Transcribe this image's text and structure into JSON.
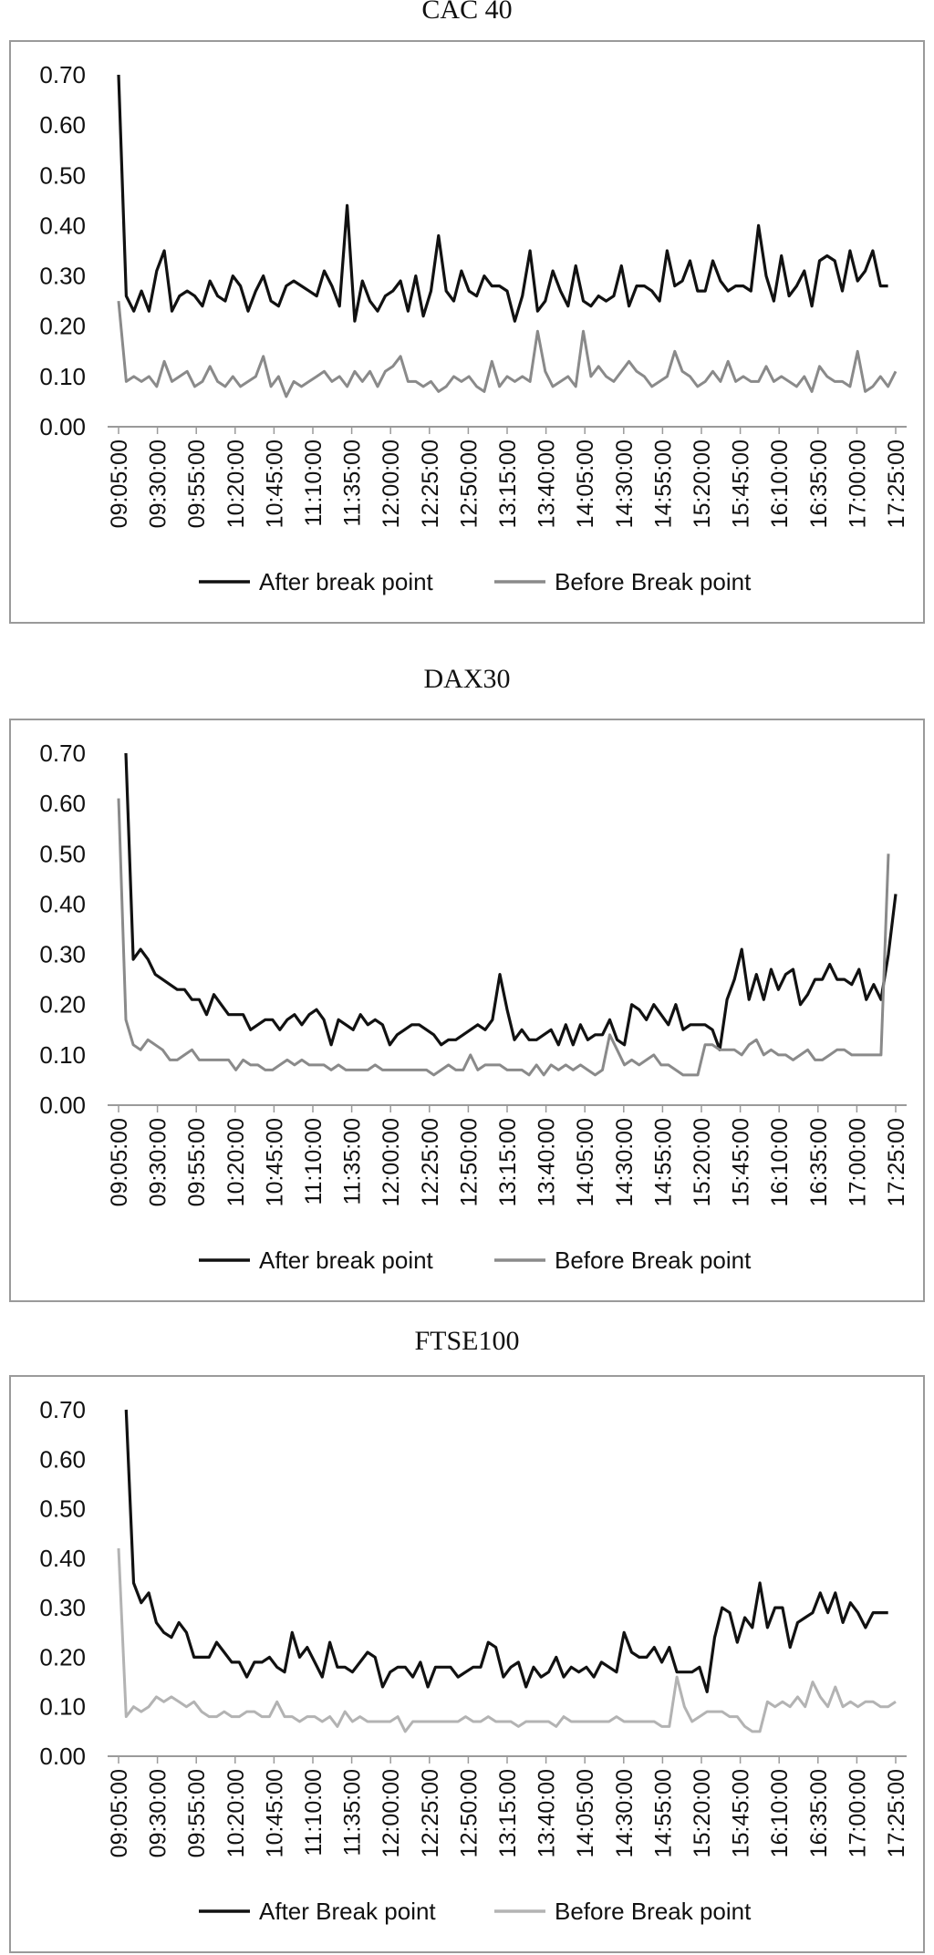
{
  "chart_data": [
    {
      "type": "line",
      "title": "CAC 40",
      "xlabel": "",
      "ylabel": "",
      "ylim": [
        0,
        0.7
      ],
      "yticks": [
        "0.00",
        "0.10",
        "0.20",
        "0.30",
        "0.40",
        "0.50",
        "0.60",
        "0.70"
      ],
      "x_tick_labels": [
        "09:05:00",
        "09:30:00",
        "09:55:00",
        "10:20:00",
        "10:45:00",
        "11:10:00",
        "11:35:00",
        "12:00:00",
        "12:25:00",
        "12:50:00",
        "13:15:00",
        "13:40:00",
        "14:05:00",
        "14:30:00",
        "14:55:00",
        "15:20:00",
        "15:45:00",
        "16:10:00",
        "16:35:00",
        "17:00:00",
        "17:25:00"
      ],
      "grid": false,
      "legend_position": "bottom",
      "series": [
        {
          "name": "After break point",
          "color": "#111111",
          "values": [
            0.7,
            0.26,
            0.23,
            0.27,
            0.23,
            0.31,
            0.35,
            0.23,
            0.26,
            0.27,
            0.26,
            0.24,
            0.29,
            0.26,
            0.25,
            0.3,
            0.28,
            0.23,
            0.27,
            0.3,
            0.25,
            0.24,
            0.28,
            0.29,
            0.28,
            0.27,
            0.26,
            0.31,
            0.28,
            0.24,
            0.44,
            0.21,
            0.29,
            0.25,
            0.23,
            0.26,
            0.27,
            0.29,
            0.23,
            0.3,
            0.22,
            0.27,
            0.38,
            0.27,
            0.25,
            0.31,
            0.27,
            0.26,
            0.3,
            0.28,
            0.28,
            0.27,
            0.21,
            0.26,
            0.35,
            0.23,
            0.25,
            0.31,
            0.27,
            0.24,
            0.32,
            0.25,
            0.24,
            0.26,
            0.25,
            0.26,
            0.32,
            0.24,
            0.28,
            0.28,
            0.27,
            0.25,
            0.35,
            0.28,
            0.29,
            0.33,
            0.27,
            0.27,
            0.33,
            0.29,
            0.27,
            0.28,
            0.28,
            0.27,
            0.4,
            0.3,
            0.25,
            0.34,
            0.26,
            0.28,
            0.31,
            0.24,
            0.33,
            0.34,
            0.33,
            0.27,
            0.35,
            0.29,
            0.31,
            0.35,
            0.28,
            0.28
          ]
        },
        {
          "name": "Before Break point",
          "color": "#8a8a8a",
          "values": [
            0.25,
            0.09,
            0.1,
            0.09,
            0.1,
            0.08,
            0.13,
            0.09,
            0.1,
            0.11,
            0.08,
            0.09,
            0.12,
            0.09,
            0.08,
            0.1,
            0.08,
            0.09,
            0.1,
            0.14,
            0.08,
            0.1,
            0.06,
            0.09,
            0.08,
            0.09,
            0.1,
            0.11,
            0.09,
            0.1,
            0.08,
            0.11,
            0.09,
            0.11,
            0.08,
            0.11,
            0.12,
            0.14,
            0.09,
            0.09,
            0.08,
            0.09,
            0.07,
            0.08,
            0.1,
            0.09,
            0.1,
            0.08,
            0.07,
            0.13,
            0.08,
            0.1,
            0.09,
            0.1,
            0.09,
            0.19,
            0.11,
            0.08,
            0.09,
            0.1,
            0.08,
            0.19,
            0.1,
            0.12,
            0.1,
            0.09,
            0.11,
            0.13,
            0.11,
            0.1,
            0.08,
            0.09,
            0.1,
            0.15,
            0.11,
            0.1,
            0.08,
            0.09,
            0.11,
            0.09,
            0.13,
            0.09,
            0.1,
            0.09,
            0.09,
            0.12,
            0.09,
            0.1,
            0.09,
            0.08,
            0.1,
            0.07,
            0.12,
            0.1,
            0.09,
            0.09,
            0.08,
            0.15,
            0.07,
            0.08,
            0.1,
            0.08,
            0.11
          ]
        }
      ]
    },
    {
      "type": "line",
      "title": "DAX30",
      "xlabel": "",
      "ylabel": "",
      "ylim": [
        0,
        0.7
      ],
      "yticks": [
        "0.00",
        "0.10",
        "0.20",
        "0.30",
        "0.40",
        "0.50",
        "0.60",
        "0.70"
      ],
      "x_tick_labels": [
        "09:05:00",
        "09:30:00",
        "09:55:00",
        "10:20:00",
        "10:45:00",
        "11:10:00",
        "11:35:00",
        "12:00:00",
        "12:25:00",
        "12:50:00",
        "13:15:00",
        "13:40:00",
        "14:05:00",
        "14:30:00",
        "14:55:00",
        "15:20:00",
        "15:45:00",
        "16:10:00",
        "16:35:00",
        "17:00:00",
        "17:25:00"
      ],
      "grid": false,
      "legend_position": "bottom",
      "series": [
        {
          "name": "After break point",
          "color": "#111111",
          "values": [
            null,
            0.7,
            0.29,
            0.31,
            0.29,
            0.26,
            0.25,
            0.24,
            0.23,
            0.23,
            0.21,
            0.21,
            0.18,
            0.22,
            0.2,
            0.18,
            0.18,
            0.18,
            0.15,
            0.16,
            0.17,
            0.17,
            0.15,
            0.17,
            0.18,
            0.16,
            0.18,
            0.19,
            0.17,
            0.12,
            0.17,
            0.16,
            0.15,
            0.18,
            0.16,
            0.17,
            0.16,
            0.12,
            0.14,
            0.15,
            0.16,
            0.16,
            0.15,
            0.14,
            0.12,
            0.13,
            0.13,
            0.14,
            0.15,
            0.16,
            0.15,
            0.17,
            0.26,
            0.19,
            0.13,
            0.15,
            0.13,
            0.13,
            0.14,
            0.15,
            0.12,
            0.16,
            0.12,
            0.16,
            0.13,
            0.14,
            0.14,
            0.17,
            0.13,
            0.12,
            0.2,
            0.19,
            0.17,
            0.2,
            0.18,
            0.16,
            0.2,
            0.15,
            0.16,
            0.16,
            0.16,
            0.15,
            0.11,
            0.21,
            0.25,
            0.31,
            0.21,
            0.26,
            0.21,
            0.27,
            0.23,
            0.26,
            0.27,
            0.2,
            0.22,
            0.25,
            0.25,
            0.28,
            0.25,
            0.25,
            0.24,
            0.27,
            0.21,
            0.24,
            0.21,
            0.3,
            0.42
          ]
        },
        {
          "name": "Before Break point",
          "color": "#8a8a8a",
          "values": [
            0.61,
            0.17,
            0.12,
            0.11,
            0.13,
            0.12,
            0.11,
            0.09,
            0.09,
            0.1,
            0.11,
            0.09,
            0.09,
            0.09,
            0.09,
            0.09,
            0.07,
            0.09,
            0.08,
            0.08,
            0.07,
            0.07,
            0.08,
            0.09,
            0.08,
            0.09,
            0.08,
            0.08,
            0.08,
            0.07,
            0.08,
            0.07,
            0.07,
            0.07,
            0.07,
            0.08,
            0.07,
            0.07,
            0.07,
            0.07,
            0.07,
            0.07,
            0.07,
            0.06,
            0.07,
            0.08,
            0.07,
            0.07,
            0.1,
            0.07,
            0.08,
            0.08,
            0.08,
            0.07,
            0.07,
            0.07,
            0.06,
            0.08,
            0.06,
            0.08,
            0.07,
            0.08,
            0.07,
            0.08,
            0.07,
            0.06,
            0.07,
            0.14,
            0.11,
            0.08,
            0.09,
            0.08,
            0.09,
            0.1,
            0.08,
            0.08,
            0.07,
            0.06,
            0.06,
            0.06,
            0.12,
            0.12,
            0.11,
            0.11,
            0.11,
            0.1,
            0.12,
            0.13,
            0.1,
            0.11,
            0.1,
            0.1,
            0.09,
            0.1,
            0.11,
            0.09,
            0.09,
            0.1,
            0.11,
            0.11,
            0.1,
            0.1,
            0.1,
            0.1,
            0.1,
            0.5
          ]
        }
      ]
    },
    {
      "type": "line",
      "title": "FTSE100",
      "xlabel": "",
      "ylabel": "",
      "ylim": [
        0,
        0.7
      ],
      "yticks": [
        "0.00",
        "0.10",
        "0.20",
        "0.30",
        "0.40",
        "0.50",
        "0.60",
        "0.70"
      ],
      "x_tick_labels": [
        "09:05:00",
        "09:30:00",
        "09:55:00",
        "10:20:00",
        "10:45:00",
        "11:10:00",
        "11:35:00",
        "12:00:00",
        "12:25:00",
        "12:50:00",
        "13:15:00",
        "13:40:00",
        "14:05:00",
        "14:30:00",
        "14:55:00",
        "15:20:00",
        "15:45:00",
        "16:10:00",
        "16:35:00",
        "17:00:00",
        "17:25:00"
      ],
      "grid": false,
      "legend_position": "bottom",
      "series": [
        {
          "name": "After Break point",
          "color": "#111111",
          "values": [
            null,
            0.7,
            0.35,
            0.31,
            0.33,
            0.27,
            0.25,
            0.24,
            0.27,
            0.25,
            0.2,
            0.2,
            0.2,
            0.23,
            0.21,
            0.19,
            0.19,
            0.16,
            0.19,
            0.19,
            0.2,
            0.18,
            0.17,
            0.25,
            0.2,
            0.22,
            0.19,
            0.16,
            0.23,
            0.18,
            0.18,
            0.17,
            0.19,
            0.21,
            0.2,
            0.14,
            0.17,
            0.18,
            0.18,
            0.16,
            0.19,
            0.14,
            0.18,
            0.18,
            0.18,
            0.16,
            0.17,
            0.18,
            0.18,
            0.23,
            0.22,
            0.16,
            0.18,
            0.19,
            0.14,
            0.18,
            0.16,
            0.17,
            0.2,
            0.16,
            0.18,
            0.17,
            0.18,
            0.16,
            0.19,
            0.18,
            0.17,
            0.25,
            0.21,
            0.2,
            0.2,
            0.22,
            0.19,
            0.22,
            0.17,
            0.17,
            0.17,
            0.18,
            0.13,
            0.24,
            0.3,
            0.29,
            0.23,
            0.28,
            0.26,
            0.35,
            0.26,
            0.3,
            0.3,
            0.22,
            0.27,
            0.28,
            0.29,
            0.33,
            0.29,
            0.33,
            0.27,
            0.31,
            0.29,
            0.26,
            0.29,
            0.29,
            0.29
          ]
        },
        {
          "name": "Before Break point",
          "color": "#b3b3b3",
          "values": [
            0.42,
            0.08,
            0.1,
            0.09,
            0.1,
            0.12,
            0.11,
            0.12,
            0.11,
            0.1,
            0.11,
            0.09,
            0.08,
            0.08,
            0.09,
            0.08,
            0.08,
            0.09,
            0.09,
            0.08,
            0.08,
            0.11,
            0.08,
            0.08,
            0.07,
            0.08,
            0.08,
            0.07,
            0.08,
            0.06,
            0.09,
            0.07,
            0.08,
            0.07,
            0.07,
            0.07,
            0.07,
            0.08,
            0.05,
            0.07,
            0.07,
            0.07,
            0.07,
            0.07,
            0.07,
            0.07,
            0.08,
            0.07,
            0.07,
            0.08,
            0.07,
            0.07,
            0.07,
            0.06,
            0.07,
            0.07,
            0.07,
            0.07,
            0.06,
            0.08,
            0.07,
            0.07,
            0.07,
            0.07,
            0.07,
            0.07,
            0.08,
            0.07,
            0.07,
            0.07,
            0.07,
            0.07,
            0.06,
            0.06,
            0.16,
            0.1,
            0.07,
            0.08,
            0.09,
            0.09,
            0.09,
            0.08,
            0.08,
            0.06,
            0.05,
            0.05,
            0.11,
            0.1,
            0.11,
            0.1,
            0.12,
            0.1,
            0.15,
            0.12,
            0.1,
            0.14,
            0.1,
            0.11,
            0.1,
            0.11,
            0.11,
            0.1,
            0.1,
            0.11
          ]
        }
      ]
    }
  ]
}
